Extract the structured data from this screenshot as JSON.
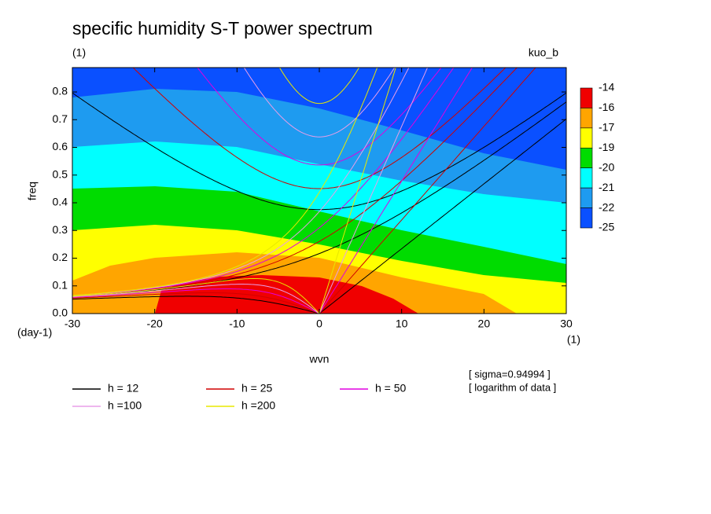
{
  "chart_data": {
    "type": "contour",
    "title": "specific humidity S-T power spectrum",
    "subtitle": "(1)",
    "label_right": "kuo_b",
    "xlabel": "wvn",
    "xlabel_unit": "(1)",
    "ylabel": "freq",
    "ylabel_unit": "(day-1)",
    "xlim": [
      -30,
      30
    ],
    "xticks": [
      -30,
      -20,
      -10,
      0,
      10,
      20,
      30
    ],
    "ylim": [
      0,
      0.888
    ],
    "yticks": [
      {
        "value": 0,
        "label": "0.0"
      },
      0.1,
      0.2,
      0.3,
      0.4,
      0.5,
      0.6,
      0.7,
      0.8
    ],
    "colorbar": {
      "levels": [
        -14,
        -16,
        -17,
        -19,
        -20,
        -21,
        -22,
        -25
      ],
      "colors": [
        "#f00000",
        "#ffa500",
        "#ffff00",
        "#00dc00",
        "#00ffff",
        "#1e9bf0",
        "#0a50ff"
      ]
    },
    "curves": [
      {
        "name": "h = 12",
        "h": 12,
        "color": "#000000"
      },
      {
        "name": "h = 25",
        "h": 25,
        "color": "#d00000"
      },
      {
        "name": "h = 50",
        "h": 50,
        "color": "#e000e0"
      },
      {
        "name": "h =100",
        "h": 100,
        "color": "#e89ee8"
      },
      {
        "name": "h =200",
        "h": 200,
        "color": "#e8e800"
      }
    ],
    "notes": [
      "[ sigma=0.94994 ]",
      "[ logarithm of data ]"
    ]
  }
}
